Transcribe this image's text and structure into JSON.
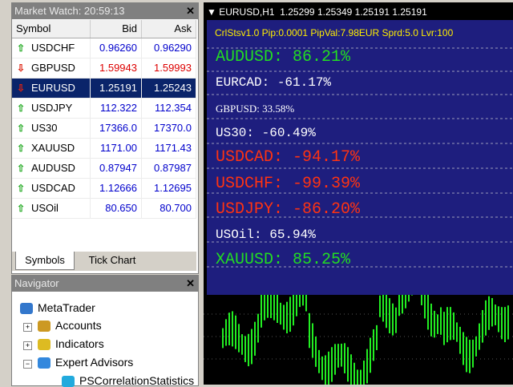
{
  "market_watch": {
    "title": "Market Watch: 20:59:13",
    "columns": [
      "Symbol",
      "Bid",
      "Ask"
    ],
    "rows": [
      {
        "symbol": "USDCHF",
        "bid": "0.96260",
        "ask": "0.96290",
        "trend": "up",
        "price_color": "#0000cc"
      },
      {
        "symbol": "GBPUSD",
        "bid": "1.59943",
        "ask": "1.59993",
        "trend": "down",
        "price_color": "#dd0000"
      },
      {
        "symbol": "EURUSD",
        "bid": "1.25191",
        "ask": "1.25243",
        "trend": "down",
        "price_color": "#ffffff",
        "selected": true
      },
      {
        "symbol": "USDJPY",
        "bid": "112.322",
        "ask": "112.354",
        "trend": "up",
        "price_color": "#0000cc"
      },
      {
        "symbol": "US30",
        "bid": "17366.0",
        "ask": "17370.0",
        "trend": "up",
        "price_color": "#0000cc"
      },
      {
        "symbol": "XAUUSD",
        "bid": "1171.00",
        "ask": "1171.43",
        "trend": "up",
        "price_color": "#0000cc"
      },
      {
        "symbol": "AUDUSD",
        "bid": "0.87947",
        "ask": "0.87987",
        "trend": "up",
        "price_color": "#0000cc"
      },
      {
        "symbol": "USDCAD",
        "bid": "1.12666",
        "ask": "1.12695",
        "trend": "up",
        "price_color": "#0000cc"
      },
      {
        "symbol": "USOil",
        "bid": "80.650",
        "ask": "80.700",
        "trend": "up",
        "price_color": "#0000cc"
      }
    ],
    "tabs": [
      "Symbols",
      "Tick Chart"
    ]
  },
  "navigator": {
    "title": "Navigator",
    "items": [
      "MetaTrader",
      "Accounts",
      "Indicators",
      "Expert Advisors",
      "PSCorrelationStatistics"
    ]
  },
  "chart": {
    "header": "EURUSD,H1  1.25299 1.25349 1.25191 1.25191",
    "info": "CrlStsv1.0 Pip:0.0001 PipVal:7.98EUR Sprd:5.0 Lvr:100",
    "correlations": [
      {
        "text": "AUDUSD: 86.21%",
        "color": "#22dd22",
        "size": "large"
      },
      {
        "text": "EURCAD: -61.17%",
        "color": "#ffffff",
        "size": "medium"
      },
      {
        "text": "GBPUSD: 33.58%",
        "color": "#ffffff",
        "size": "small"
      },
      {
        "text": "US30: -60.49%",
        "color": "#ffffff",
        "size": "medium"
      },
      {
        "text": "USDCAD: -94.17%",
        "color": "#ff3311",
        "size": "large"
      },
      {
        "text": "USDCHF: -99.39%",
        "color": "#ff3311",
        "size": "large"
      },
      {
        "text": "USDJPY: -86.20%",
        "color": "#ff3311",
        "size": "large"
      },
      {
        "text": "USOil: 65.94%",
        "color": "#ffffff",
        "size": "medium"
      },
      {
        "text": "XAUUSD: 85.25%",
        "color": "#22dd22",
        "size": "large"
      }
    ]
  }
}
